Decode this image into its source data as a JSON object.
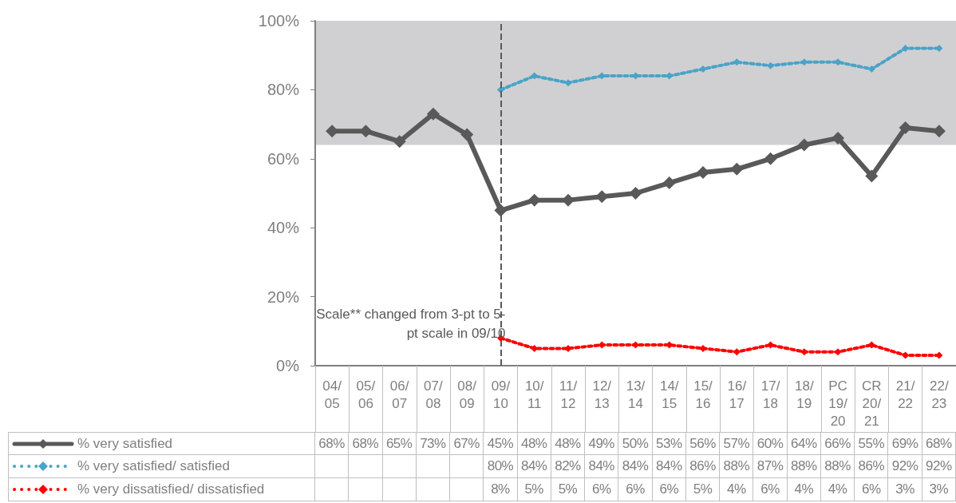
{
  "chart_data": {
    "type": "line",
    "categories": [
      "04/05",
      "05/06",
      "06/07",
      "07/08",
      "08/09",
      "09/10",
      "10/11",
      "11/12",
      "12/13",
      "13/14",
      "14/15",
      "15/16",
      "16/17",
      "17/18",
      "18/19",
      "PC 19/20",
      "CR 20/21",
      "21/22",
      "22/23"
    ],
    "series": [
      {
        "name": "% very satisfied",
        "color": "#595959",
        "line_style": "solid",
        "marker": "diamond",
        "values": [
          68,
          68,
          65,
          73,
          67,
          45,
          48,
          48,
          49,
          50,
          53,
          56,
          57,
          60,
          64,
          66,
          55,
          69,
          68
        ],
        "value_labels": [
          "68%",
          "68%",
          "65%",
          "73%",
          "67%",
          "45%",
          "48%",
          "48%",
          "49%",
          "50%",
          "53%",
          "56%",
          "57%",
          "60%",
          "64%",
          "66%",
          "55%",
          "69%",
          "68%"
        ]
      },
      {
        "name": "% very satisfied/ satisfied",
        "color": "#4aa3c8",
        "line_style": "dotted",
        "marker": "diamond",
        "values": [
          null,
          null,
          null,
          null,
          null,
          80,
          84,
          82,
          84,
          84,
          84,
          86,
          88,
          87,
          88,
          88,
          86,
          92,
          92
        ],
        "value_labels": [
          null,
          null,
          null,
          null,
          null,
          "80%",
          "84%",
          "82%",
          "84%",
          "84%",
          "84%",
          "86%",
          "88%",
          "87%",
          "88%",
          "88%",
          "86%",
          "92%",
          "92%"
        ]
      },
      {
        "name": "% very dissatisfied/ dissatisfied",
        "color": "#ff0000",
        "line_style": "dotted",
        "marker": "diamond",
        "values": [
          null,
          null,
          null,
          null,
          null,
          8,
          5,
          5,
          6,
          6,
          6,
          5,
          4,
          6,
          4,
          4,
          6,
          3,
          3
        ],
        "value_labels": [
          null,
          null,
          null,
          null,
          null,
          "8%",
          "5%",
          "5%",
          "6%",
          "6%",
          "6%",
          "5%",
          "4%",
          "6%",
          "4%",
          "4%",
          "6%",
          "3%",
          "3%"
        ]
      }
    ],
    "ylim": [
      0,
      100
    ],
    "yticks": [
      {
        "value": 0,
        "label": "0%"
      },
      {
        "value": 20,
        "label": "20%"
      },
      {
        "value": 40,
        "label": "40%"
      },
      {
        "value": 60,
        "label": "60%"
      },
      {
        "value": 80,
        "label": "80%"
      },
      {
        "value": 100,
        "label": "100%"
      }
    ],
    "grid": false,
    "legend": "bottom left",
    "bands": [
      {
        "axis": "y",
        "from": 64,
        "to": 100,
        "color": "#d0d0d2"
      }
    ],
    "ref_lines": [
      {
        "axis": "x",
        "value": "09/10",
        "color": "#595959",
        "line_style": "dashed"
      }
    ],
    "annotations": [
      "Scale** changed from 3-pt to 5-pt scale in 09/10"
    ]
  }
}
